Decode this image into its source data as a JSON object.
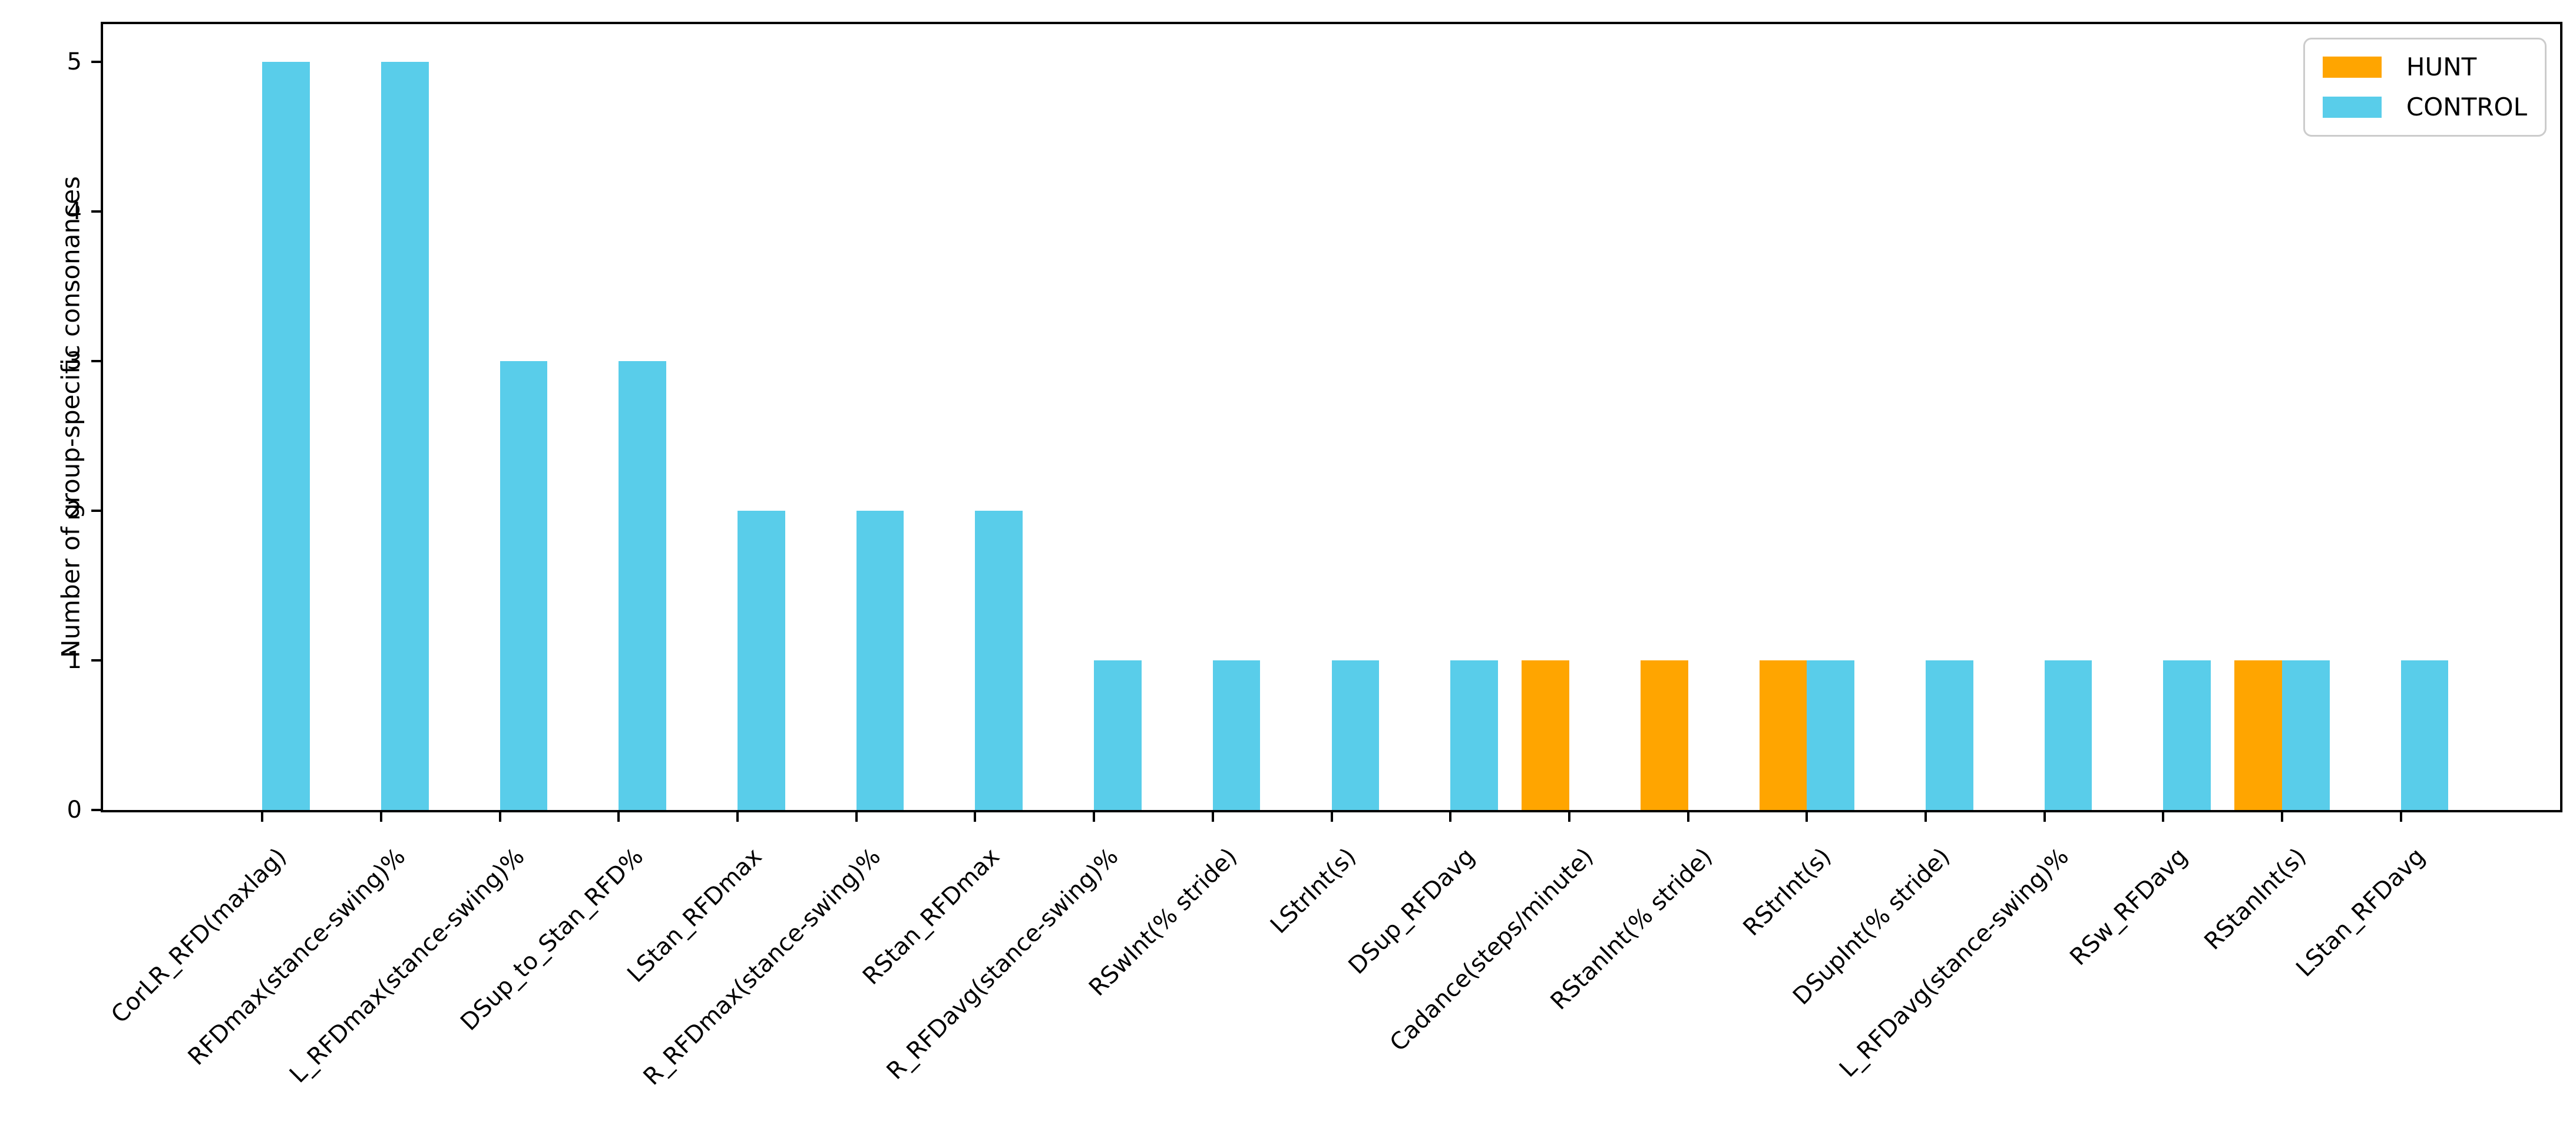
{
  "figure": {
    "background": "#ffffff",
    "frame_color": "#000000"
  },
  "chart_data": {
    "type": "bar",
    "title": "",
    "xlabel": "",
    "ylabel": "Number of group-specific consonances",
    "ylim": [
      0,
      5.25
    ],
    "yticks": [
      0,
      1,
      2,
      3,
      4,
      5
    ],
    "xlim": [
      -1.34,
      19.34
    ],
    "bar_width_units": 0.4,
    "grid": "off",
    "categories": [
      "CorLR_RFD(maxlag)",
      "RFDmax(stance-swing)%",
      "L_RFDmax(stance-swing)%",
      "DSup_to_Stan_RFD%",
      "LStan_RFDmax",
      "R_RFDmax(stance-swing)%",
      "RStan_RFDmax",
      "R_RFDavg(stance-swing)%",
      "RSwInt(% stride)",
      "LStrInt(s)",
      "DSup_RFDavg",
      "Cadance(steps/minute)",
      "RStanInt(% stride)",
      "RStrInt(s)",
      "DSupInt(% stride)",
      "L_RFDavg(stance-swing)%",
      "RSw_RFDavg",
      "RStanInt(s)",
      "LStan_RFDavg"
    ],
    "series": [
      {
        "name": "HUNT",
        "color": "#ffa500",
        "values": [
          0,
          0,
          0,
          0,
          0,
          0,
          0,
          0,
          0,
          0,
          0,
          1,
          1,
          1,
          0,
          0,
          0,
          1,
          0
        ]
      },
      {
        "name": "CONTROL",
        "color": "#59cdea",
        "values": [
          5,
          5,
          3,
          3,
          2,
          2,
          2,
          1,
          1,
          1,
          1,
          0,
          0,
          1,
          1,
          1,
          1,
          1,
          1
        ]
      }
    ],
    "legend": {
      "position": "upper right",
      "entries": [
        {
          "label": "HUNT",
          "color": "#ffa500"
        },
        {
          "label": "CONTROL",
          "color": "#59cdea"
        }
      ]
    }
  }
}
